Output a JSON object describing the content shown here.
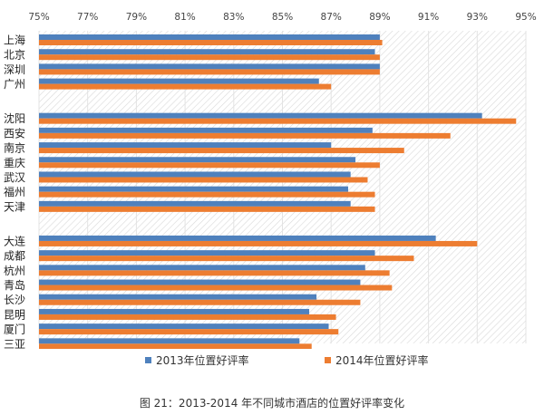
{
  "chart_data": {
    "type": "bar",
    "orientation": "horizontal",
    "categories": [
      "上海",
      "北京",
      "深圳",
      "广州",
      "沈阳",
      "西安",
      "南京",
      "重庆",
      "武汉",
      "福州",
      "天津",
      "大连",
      "成都",
      "杭州",
      "青岛",
      "长沙",
      "昆明",
      "厦门",
      "三亚"
    ],
    "groups": [
      [
        0,
        1,
        2,
        3
      ],
      [
        4,
        5,
        6,
        7,
        8,
        9,
        10
      ],
      [
        11,
        12,
        13,
        14,
        15,
        16,
        17,
        18
      ]
    ],
    "series": [
      {
        "name": "2013年位置好评率",
        "color": "#4f81bd",
        "values": [
          89.0,
          88.8,
          89.0,
          86.5,
          93.2,
          88.7,
          87.0,
          88.0,
          87.8,
          87.7,
          87.8,
          91.3,
          88.8,
          88.4,
          88.2,
          86.4,
          86.1,
          86.9,
          85.7
        ]
      },
      {
        "name": "2014年位置好评率",
        "color": "#ed7d31",
        "values": [
          89.1,
          89.0,
          89.0,
          87.0,
          94.6,
          91.9,
          90.0,
          89.0,
          88.5,
          88.8,
          88.8,
          93.0,
          90.4,
          89.4,
          89.5,
          88.2,
          87.2,
          87.3,
          86.2
        ]
      }
    ],
    "xlim": [
      75,
      95
    ],
    "xticks": [
      "75%",
      "77%",
      "79%",
      "81%",
      "83%",
      "85%",
      "87%",
      "89%",
      "91%",
      "93%",
      "95%"
    ],
    "xaxis_position": "top",
    "legend_position": "bottom",
    "grid": true
  },
  "caption": "图 21：2013-2014 年不同城市酒店的位置好评率变化"
}
